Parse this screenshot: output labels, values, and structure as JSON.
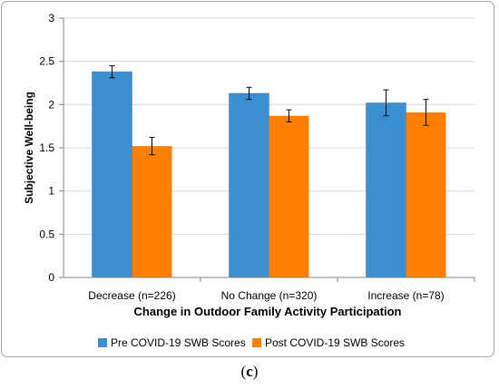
{
  "chart_data": {
    "type": "bar",
    "title": "",
    "xlabel": "Change in Outdoor Family Activity Participation",
    "ylabel": "Subjective Well-being",
    "ylim": [
      0,
      3
    ],
    "yticks": [
      "0",
      "0.5",
      "1",
      "1.5",
      "2",
      "2.5",
      "3"
    ],
    "ytick_values": [
      0,
      0.5,
      1,
      1.5,
      2,
      2.5,
      3
    ],
    "grid": true,
    "legend_position": "bottom",
    "categories": [
      "Decrease (n=226)",
      "No Change (n=320)",
      "Increase (n=78)"
    ],
    "series": [
      {
        "name": "Pre COVID-19 SWB Scores",
        "color": "#3a8fd0",
        "values": [
          2.38,
          2.13,
          2.02
        ],
        "error": [
          0.07,
          0.07,
          0.15
        ]
      },
      {
        "name": "Post COVID-19 SWB Scores",
        "color": "#ff8000",
        "values": [
          1.52,
          1.87,
          1.91
        ],
        "error": [
          0.1,
          0.07,
          0.15
        ]
      }
    ]
  },
  "caption": {
    "open": "(",
    "letter": "c",
    "close": ")"
  }
}
